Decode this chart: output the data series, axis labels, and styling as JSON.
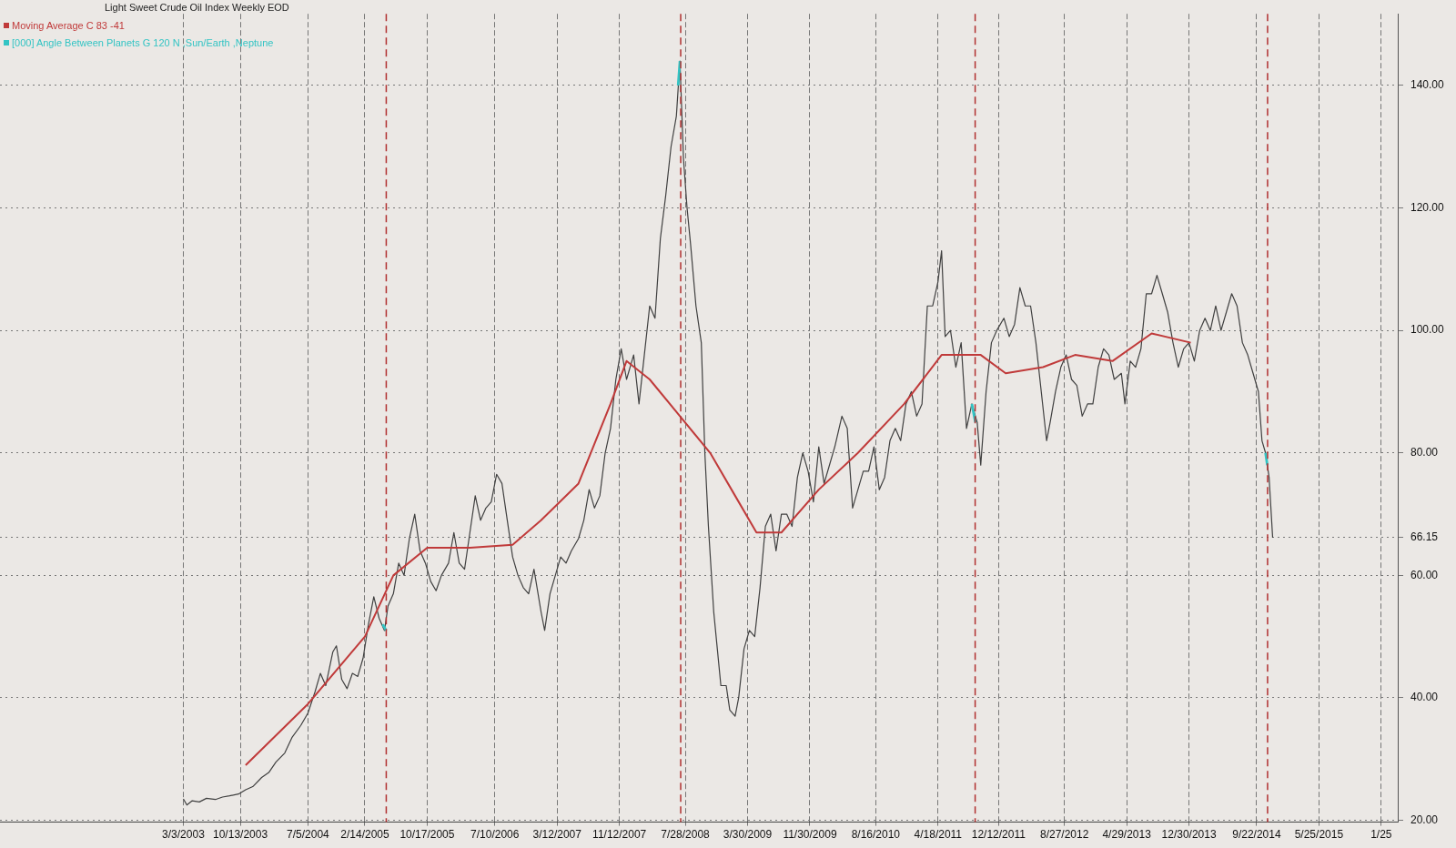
{
  "chart_data": {
    "type": "line",
    "title": "Light Sweet Crude Oil Index Weekly EOD",
    "xlim": [
      "2001-03-12",
      "2016-03-30"
    ],
    "xticks": [
      {
        "value": "2003-03-03",
        "label": "3/3/2003"
      },
      {
        "value": "2003-10-13",
        "label": "10/13/2003"
      },
      {
        "value": "2004-07-05",
        "label": "7/5/2004"
      },
      {
        "value": "2005-02-14",
        "label": "2/14/2005"
      },
      {
        "value": "2005-10-17",
        "label": "10/17/2005"
      },
      {
        "value": "2006-07-10",
        "label": "7/10/2006"
      },
      {
        "value": "2007-03-12",
        "label": "3/12/2007"
      },
      {
        "value": "2007-11-12",
        "label": "11/12/2007"
      },
      {
        "value": "2008-07-28",
        "label": "7/28/2008"
      },
      {
        "value": "2009-03-30",
        "label": "3/30/2009"
      },
      {
        "value": "2009-11-30",
        "label": "11/30/2009"
      },
      {
        "value": "2010-08-16",
        "label": "8/16/2010"
      },
      {
        "value": "2011-04-18",
        "label": "4/18/2011"
      },
      {
        "value": "2011-12-12",
        "label": "12/12/2011"
      },
      {
        "value": "2012-08-27",
        "label": "8/27/2012"
      },
      {
        "value": "2013-04-29",
        "label": "4/29/2013"
      },
      {
        "value": "2013-12-30",
        "label": "12/30/2013"
      },
      {
        "value": "2014-09-22",
        "label": "9/22/2014"
      },
      {
        "value": "2015-05-25",
        "label": "5/25/2015"
      },
      {
        "value": "2016-01-25",
        "label": "1/25"
      }
    ],
    "ylim": [
      19.7,
      151.7
    ],
    "yticks": [
      {
        "value": 20,
        "label": "20.00"
      },
      {
        "value": 40,
        "label": "40.00"
      },
      {
        "value": 60,
        "label": "60.00"
      },
      {
        "value": 80,
        "label": "80.00"
      },
      {
        "value": 100,
        "label": "100.00"
      },
      {
        "value": 120,
        "label": "120.00"
      },
      {
        "value": 140,
        "label": "140.00"
      },
      66.15
    ],
    "grid": true,
    "legend": "top left",
    "marker": "none",
    "line_style": "solid",
    "ref_lines": [
      {
        "axis": "x",
        "value": "2005-05-09",
        "color": "#b03030",
        "line_style": "dashed"
      },
      {
        "axis": "x",
        "value": "2008-07-10",
        "color": "#b03030",
        "line_style": "dashed"
      },
      {
        "axis": "x",
        "value": "2011-09-11",
        "color": "#b03030",
        "line_style": "dashed"
      },
      {
        "axis": "x",
        "value": "2014-11-04",
        "color": "#b03030",
        "line_style": "dashed"
      }
    ],
    "series": [
      {
        "color": "#404040",
        "x": [
          "2003-03-03",
          "2003-03-17",
          "2003-04-07",
          "2003-05-05",
          "2003-06-02",
          "2003-07-07",
          "2003-08-04",
          "2003-09-01",
          "2003-10-06",
          "2003-11-03",
          "2003-12-01",
          "2004-01-05",
          "2004-02-02",
          "2004-03-01",
          "2004-04-05",
          "2004-05-03",
          "2004-06-07",
          "2004-07-05",
          "2004-08-02",
          "2004-08-23",
          "2004-09-13",
          "2004-10-11",
          "2004-10-25",
          "2004-11-15",
          "2004-12-06",
          "2004-12-27",
          "2005-01-17",
          "2005-02-07",
          "2005-02-28",
          "2005-03-21",
          "2005-04-11",
          "2005-05-02",
          "2005-05-16",
          "2005-06-06",
          "2005-06-27",
          "2005-07-18",
          "2005-08-08",
          "2005-08-29",
          "2005-09-19",
          "2005-10-10",
          "2005-10-31",
          "2005-11-21",
          "2005-12-12",
          "2006-01-09",
          "2006-01-30",
          "2006-02-20",
          "2006-03-13",
          "2006-04-03",
          "2006-04-24",
          "2006-05-15",
          "2006-06-05",
          "2006-06-26",
          "2006-07-17",
          "2006-08-07",
          "2006-08-28",
          "2006-09-18",
          "2006-10-09",
          "2006-10-30",
          "2006-11-20",
          "2006-12-11",
          "2007-01-08",
          "2007-01-22",
          "2007-02-12",
          "2007-03-05",
          "2007-03-26",
          "2007-04-16",
          "2007-05-07",
          "2007-06-04",
          "2007-06-25",
          "2007-07-16",
          "2007-08-06",
          "2007-08-27",
          "2007-09-17",
          "2007-10-08",
          "2007-10-29",
          "2007-11-19",
          "2007-12-10",
          "2008-01-07",
          "2008-01-28",
          "2008-02-18",
          "2008-03-10",
          "2008-03-31",
          "2008-04-21",
          "2008-05-12",
          "2008-06-02",
          "2008-06-23",
          "2008-07-07",
          "2008-07-21",
          "2008-08-04",
          "2008-08-18",
          "2008-09-08",
          "2008-09-29",
          "2008-10-13",
          "2008-10-27",
          "2008-11-17",
          "2008-12-01",
          "2008-12-15",
          "2009-01-05",
          "2009-01-19",
          "2009-02-09",
          "2009-02-23",
          "2009-03-16",
          "2009-04-06",
          "2009-04-27",
          "2009-05-18",
          "2009-06-08",
          "2009-06-29",
          "2009-07-20",
          "2009-08-10",
          "2009-08-31",
          "2009-09-21",
          "2009-10-12",
          "2009-11-02",
          "2009-11-23",
          "2009-12-14",
          "2010-01-04",
          "2010-01-25",
          "2010-02-15",
          "2010-03-08",
          "2010-04-05",
          "2010-04-26",
          "2010-05-17",
          "2010-06-07",
          "2010-06-28",
          "2010-07-19",
          "2010-08-09",
          "2010-08-30",
          "2010-09-20",
          "2010-10-11",
          "2010-11-01",
          "2010-11-22",
          "2010-12-13",
          "2011-01-03",
          "2011-01-24",
          "2011-02-14",
          "2011-03-07",
          "2011-03-28",
          "2011-04-18",
          "2011-05-02",
          "2011-05-16",
          "2011-06-06",
          "2011-06-27",
          "2011-07-18",
          "2011-08-08",
          "2011-08-29",
          "2011-09-19",
          "2011-10-03",
          "2011-10-24",
          "2011-11-14",
          "2011-12-05",
          "2012-01-02",
          "2012-01-23",
          "2012-02-13",
          "2012-03-05",
          "2012-03-26",
          "2012-04-16",
          "2012-05-07",
          "2012-05-28",
          "2012-06-18",
          "2012-07-02",
          "2012-07-23",
          "2012-08-13",
          "2012-09-03",
          "2012-09-24",
          "2012-10-15",
          "2012-11-05",
          "2012-11-26",
          "2012-12-17",
          "2013-01-07",
          "2013-01-28",
          "2013-02-18",
          "2013-03-11",
          "2013-04-08",
          "2013-04-22",
          "2013-05-13",
          "2013-06-03",
          "2013-06-24",
          "2013-07-15",
          "2013-08-05",
          "2013-08-26",
          "2013-09-16",
          "2013-10-07",
          "2013-10-28",
          "2013-11-18",
          "2013-12-09",
          "2013-12-30",
          "2014-01-20",
          "2014-02-10",
          "2014-03-03",
          "2014-03-24",
          "2014-04-14",
          "2014-05-05",
          "2014-05-26",
          "2014-06-16",
          "2014-07-07",
          "2014-07-28",
          "2014-08-18",
          "2014-09-08",
          "2014-09-29",
          "2014-10-13",
          "2014-10-27",
          "2014-11-10",
          "2014-11-24"
        ],
        "values": [
          23.5,
          22.5,
          23.2,
          23,
          23.6,
          23.4,
          23.8,
          24,
          24.3,
          25,
          25.5,
          27,
          27.8,
          29.5,
          31,
          33.5,
          35.5,
          37.5,
          41,
          44,
          42,
          47.5,
          48.5,
          43,
          41.5,
          44,
          43.5,
          46.5,
          52,
          56.5,
          53,
          51,
          55,
          57,
          62,
          60,
          66,
          70,
          64,
          62,
          59,
          57.5,
          60,
          62,
          67,
          62,
          61,
          67,
          73,
          69,
          71,
          72,
          76.5,
          75,
          69,
          63,
          60,
          58,
          57,
          61,
          54,
          51,
          57,
          60,
          63,
          62,
          64,
          66,
          69,
          74,
          71,
          73,
          80,
          84,
          92,
          97,
          92,
          96,
          88,
          96,
          104,
          102,
          115,
          122,
          130,
          135,
          144,
          128,
          120,
          114,
          104,
          98,
          80,
          68,
          54,
          48,
          42,
          42,
          38,
          37,
          40,
          48,
          51,
          50,
          58,
          68,
          70,
          64,
          70,
          70,
          68,
          76,
          80,
          77,
          72,
          81,
          75,
          78,
          81,
          86,
          84,
          71,
          74,
          77,
          77,
          81,
          74,
          76,
          82,
          84,
          82,
          88,
          90,
          86,
          88,
          104,
          104,
          108,
          113,
          99,
          100,
          94,
          98,
          84,
          88,
          85,
          78,
          90,
          98,
          100,
          102,
          99,
          101,
          107,
          104,
          104,
          98,
          90,
          82,
          85,
          90,
          94,
          96,
          92,
          91,
          86,
          88,
          88,
          94,
          97,
          96,
          92,
          93,
          88,
          95,
          94,
          97,
          106,
          106,
          109,
          106,
          103,
          98,
          94,
          97,
          98,
          95,
          100,
          102,
          100,
          104,
          100,
          103,
          106,
          104,
          98,
          96,
          93,
          90,
          82,
          80,
          76,
          66.15
        ]
      },
      {
        "name": "Moving Average C 83 -41",
        "color": "#c03a3a",
        "x": [
          "2003-11-03",
          "2004-07-05",
          "2005-02-14",
          "2005-06-06",
          "2005-10-17",
          "2006-04-03",
          "2006-09-18",
          "2007-01-08",
          "2007-06-04",
          "2007-10-08",
          "2007-12-10",
          "2008-03-10",
          "2008-07-07",
          "2008-11-03",
          "2009-02-09",
          "2009-05-04",
          "2009-08-10",
          "2010-01-04",
          "2010-06-07",
          "2010-12-06",
          "2011-05-02",
          "2011-10-03",
          "2012-01-09",
          "2012-06-04",
          "2012-10-08",
          "2013-03-04",
          "2013-08-05",
          "2014-01-06"
        ],
        "values": [
          29,
          39,
          50,
          60,
          64.5,
          64.5,
          65,
          69,
          75,
          88,
          95,
          92,
          86,
          80,
          73,
          67,
          67,
          74,
          80,
          88,
          96,
          96,
          93,
          94,
          96,
          95,
          99.5,
          98
        ]
      },
      {
        "name": "[000] Angle Between Planets G 120 N ,Sun/Earth ,Neptune",
        "color": "#33c4c4",
        "x": [
          "2005-04-25",
          "2005-05-09",
          "2005-05-23",
          "2008-06-30",
          "2008-07-07",
          "2008-07-14",
          "2011-08-29",
          "2011-09-12",
          "2011-09-26",
          "2014-10-27",
          "2014-11-03"
        ],
        "values": [
          52,
          51,
          null,
          140,
          144,
          null,
          88,
          85,
          null,
          80,
          78
        ]
      }
    ]
  }
}
